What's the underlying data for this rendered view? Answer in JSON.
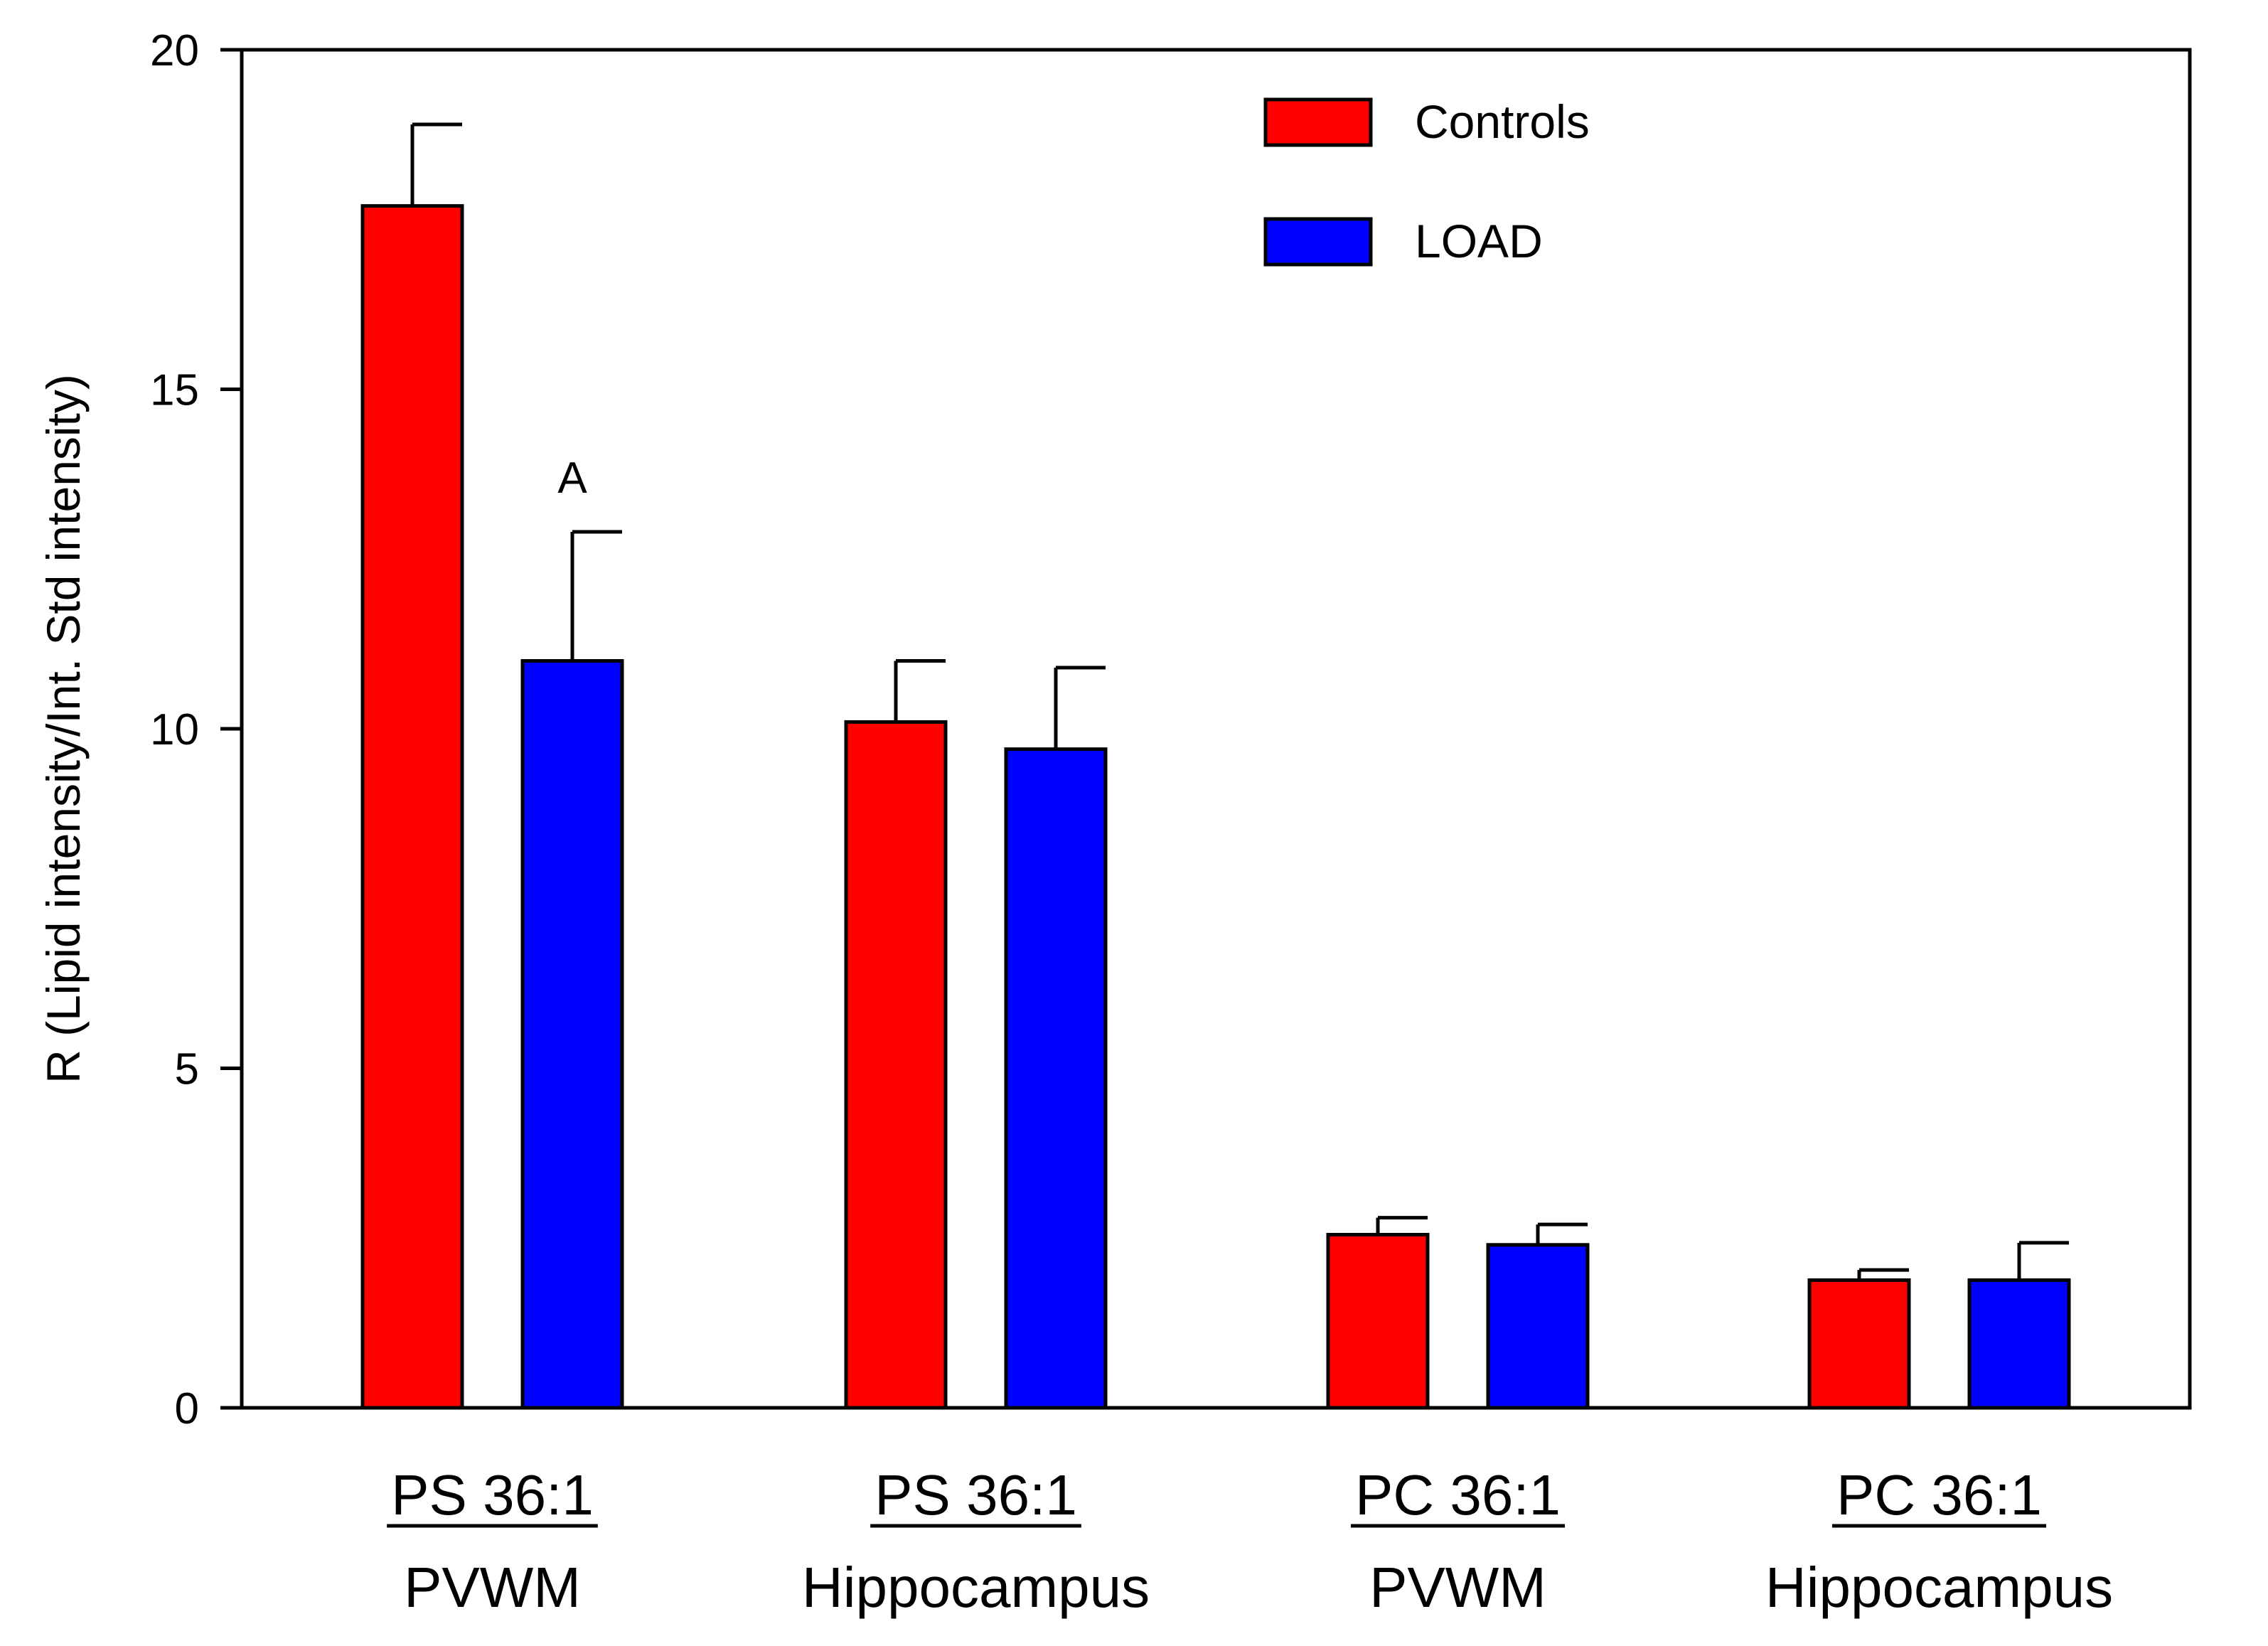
{
  "chart_data": {
    "type": "bar",
    "title": "",
    "xlabel": "",
    "ylabel": "R (Lipid intensity/Int. Std intensity)",
    "ylim": [
      0,
      20
    ],
    "yticks": [
      0,
      5,
      10,
      15,
      20
    ],
    "grid": false,
    "legend_position": "top-right",
    "categories": [
      {
        "line1": "PS 36:1",
        "line2": "PVWM"
      },
      {
        "line1": "PS 36:1",
        "line2": "Hippocampus"
      },
      {
        "line1": "PC  36:1",
        "line2": "PVWM"
      },
      {
        "line1": "PC 36:1",
        "line2": "Hippocampus"
      }
    ],
    "series": [
      {
        "name": "Controls",
        "color": "#ff0000",
        "values": [
          17.7,
          10.1,
          2.55,
          1.88
        ],
        "errors": [
          1.2,
          0.9,
          0.25,
          0.15
        ]
      },
      {
        "name": "LOAD",
        "color": "#0000ff",
        "values": [
          11.0,
          9.7,
          2.4,
          1.88
        ],
        "errors": [
          1.9,
          1.2,
          0.3,
          0.55
        ]
      }
    ],
    "annotations": [
      {
        "text": "A",
        "category_index": 0,
        "series_index": 1
      }
    ]
  }
}
